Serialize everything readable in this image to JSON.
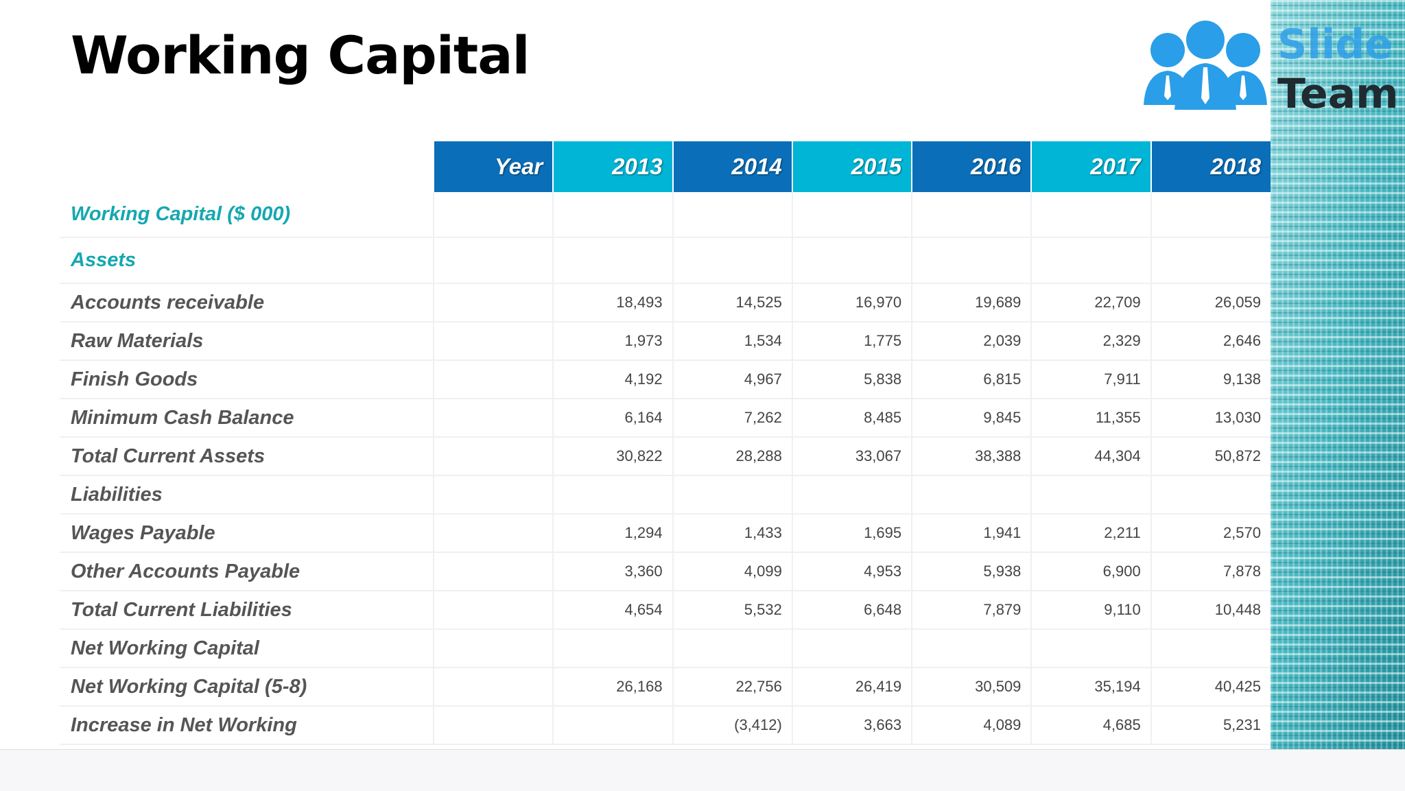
{
  "title": "Working Capital",
  "logo": {
    "line1": "Slide",
    "line2": "Team"
  },
  "table": {
    "header": [
      "Year",
      "2013",
      "2014",
      "2015",
      "2016",
      "2017",
      "2018"
    ],
    "rows": [
      {
        "label": "Working Capital ($ 000)",
        "values": [
          null,
          null,
          null,
          null,
          null,
          null
        ]
      },
      {
        "label": "Assets",
        "values": [
          null,
          null,
          null,
          null,
          null,
          null
        ]
      },
      {
        "label": "Accounts receivable",
        "values": [
          "18,493",
          "14,525",
          "16,970",
          "19,689",
          "22,709",
          "26,059"
        ]
      },
      {
        "label": "Raw Materials",
        "values": [
          "1,973",
          "1,534",
          "1,775",
          "2,039",
          "2,329",
          "2,646"
        ]
      },
      {
        "label": "Finish Goods",
        "values": [
          "4,192",
          "4,967",
          "5,838",
          "6,815",
          "7,911",
          "9,138"
        ]
      },
      {
        "label": "Minimum Cash Balance",
        "values": [
          "6,164",
          "7,262",
          "8,485",
          "9,845",
          "11,355",
          "13,030"
        ]
      },
      {
        "label": "Total Current Assets",
        "values": [
          "30,822",
          "28,288",
          "33,067",
          "38,388",
          "44,304",
          "50,872"
        ]
      },
      {
        "label": "Liabilities",
        "values": [
          null,
          null,
          null,
          null,
          null,
          null
        ]
      },
      {
        "label": "Wages Payable",
        "values": [
          "1,294",
          "1,433",
          "1,695",
          "1,941",
          "2,211",
          "2,570"
        ]
      },
      {
        "label": "Other Accounts Payable",
        "values": [
          "3,360",
          "4,099",
          "4,953",
          "5,938",
          "6,900",
          "7,878"
        ]
      },
      {
        "label": "Total Current Liabilities",
        "values": [
          "4,654",
          "5,532",
          "6,648",
          "7,879",
          "9,110",
          "10,448"
        ]
      },
      {
        "label": "Net Working Capital",
        "values": [
          null,
          null,
          null,
          null,
          null,
          null
        ]
      },
      {
        "label": "Net Working Capital (5-8)",
        "values": [
          "26,168",
          "22,756",
          "26,419",
          "30,509",
          "35,194",
          "40,425"
        ]
      },
      {
        "label": "Increase in Net Working",
        "values": [
          null,
          "(3,412)",
          "3,663",
          "4,089",
          "4,685",
          "5,231"
        ]
      }
    ]
  }
}
